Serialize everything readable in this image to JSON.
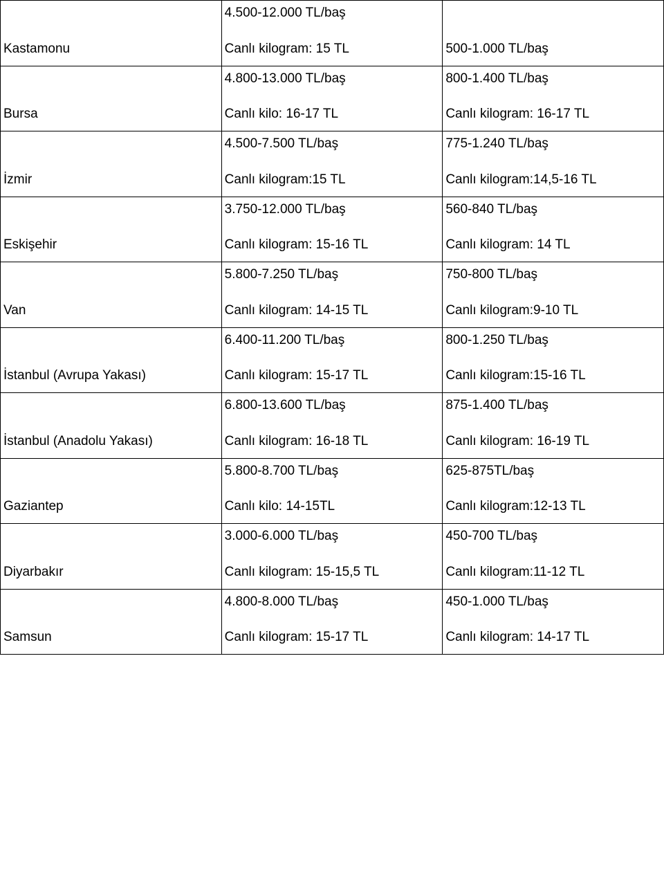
{
  "rows": [
    {
      "city": "Kastamonu",
      "col2": {
        "line1": "4.500-12.000 TL/baş",
        "line2": "Canlı kilogram: 15 TL"
      },
      "col3": {
        "line1": "",
        "line2": "500-1.000 TL/baş"
      }
    },
    {
      "city": "Bursa",
      "col2": {
        "line1": "4.800-13.000 TL/baş",
        "line2": "Canlı kilo: 16-17 TL"
      },
      "col3": {
        "line1": "800-1.400 TL/baş",
        "line2": "Canlı kilogram: 16-17 TL"
      }
    },
    {
      "city": "İzmir",
      "col2": {
        "line1": "4.500-7.500 TL/baş",
        "line2": "Canlı kilogram:15 TL"
      },
      "col3": {
        "line1": "775-1.240 TL/baş",
        "line2": "Canlı kilogram:14,5-16 TL"
      }
    },
    {
      "city": "Eskişehir",
      "col2": {
        "line1": "3.750-12.000 TL/baş",
        "line2": "Canlı kilogram: 15-16 TL"
      },
      "col3": {
        "line1": "560-840 TL/baş",
        "line2": "Canlı kilogram: 14 TL"
      }
    },
    {
      "city": "Van",
      "col2": {
        "line1": "5.800-7.250 TL/baş",
        "line2": "Canlı kilogram: 14-15 TL"
      },
      "col3": {
        "line1": "750-800 TL/baş",
        "line2": "Canlı kilogram:9-10 TL"
      }
    },
    {
      "city": "İstanbul (Avrupa Yakası)",
      "col2": {
        "line1": "6.400-11.200 TL/baş",
        "line2": "Canlı kilogram: 15-17 TL"
      },
      "col3": {
        "line1": "800-1.250 TL/baş",
        "line2": "Canlı kilogram:15-16 TL"
      }
    },
    {
      "city": "İstanbul (Anadolu Yakası)",
      "col2": {
        "line1": "6.800-13.600 TL/baş",
        "line2": "Canlı kilogram: 16-18 TL"
      },
      "col3": {
        "line1": "875-1.400 TL/baş",
        "line2": "Canlı kilogram: 16-19 TL"
      }
    },
    {
      "city": "Gaziantep",
      "col2": {
        "line1": "5.800-8.700 TL/baş",
        "line2": "Canlı kilo: 14-15TL"
      },
      "col3": {
        "line1": "625-875TL/baş",
        "line2": "Canlı kilogram:12-13 TL"
      }
    },
    {
      "city": "Diyarbakır",
      "col2": {
        "line1": "3.000-6.000 TL/baş",
        "line2": "Canlı kilogram: 15-15,5 TL"
      },
      "col3": {
        "line1": "450-700 TL/baş",
        "line2": "Canlı kilogram:11-12 TL"
      }
    },
    {
      "city": "Samsun",
      "col2": {
        "line1": "4.800-8.000 TL/baş",
        "line2": "Canlı kilogram: 15-17 TL"
      },
      "col3": {
        "line1": "450-1.000 TL/baş",
        "line2": "Canlı kilogram: 14-17 TL"
      }
    }
  ]
}
